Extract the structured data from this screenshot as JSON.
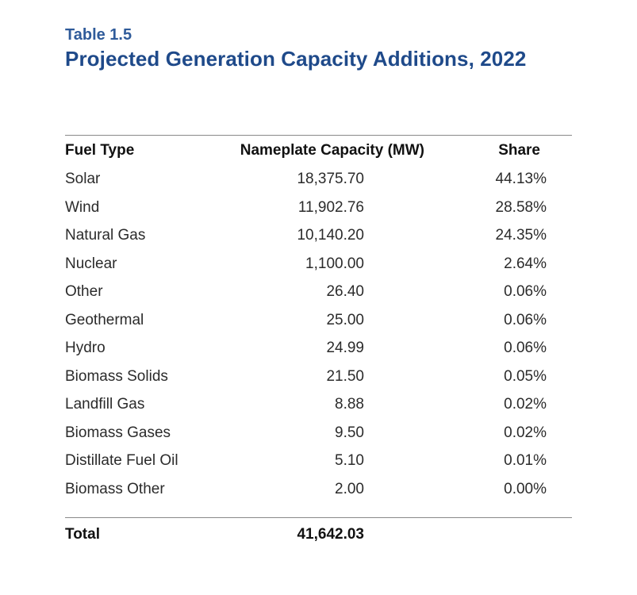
{
  "caption": {
    "label": "Table 1.5",
    "title": "Projected Generation Capacity Additions, 2022"
  },
  "table": {
    "headers": {
      "fuel": "Fuel Type",
      "capacity": "Nameplate Capacity (MW)",
      "share": "Share"
    },
    "rows": [
      {
        "fuel": "Solar",
        "capacity": "18,375.70",
        "share": "44.13%"
      },
      {
        "fuel": "Wind",
        "capacity": "11,902.76",
        "share": "28.58%"
      },
      {
        "fuel": "Natural Gas",
        "capacity": "10,140.20",
        "share": "24.35%"
      },
      {
        "fuel": "Nuclear",
        "capacity": "1,100.00",
        "share": "2.64%"
      },
      {
        "fuel": "Other",
        "capacity": "26.40",
        "share": "0.06%"
      },
      {
        "fuel": "Geothermal",
        "capacity": "25.00",
        "share": "0.06%"
      },
      {
        "fuel": "Hydro",
        "capacity": "24.99",
        "share": "0.06%"
      },
      {
        "fuel": "Biomass Solids",
        "capacity": "21.50",
        "share": "0.05%"
      },
      {
        "fuel": "Landfill Gas",
        "capacity": "8.88",
        "share": "0.02%"
      },
      {
        "fuel": "Biomass Gases",
        "capacity": "9.50",
        "share": "0.02%"
      },
      {
        "fuel": "Distillate Fuel Oil",
        "capacity": "5.10",
        "share": "0.01%"
      },
      {
        "fuel": "Biomass Other",
        "capacity": "2.00",
        "share": "0.00%"
      }
    ],
    "total": {
      "label": "Total",
      "capacity": "41,642.03"
    }
  }
}
